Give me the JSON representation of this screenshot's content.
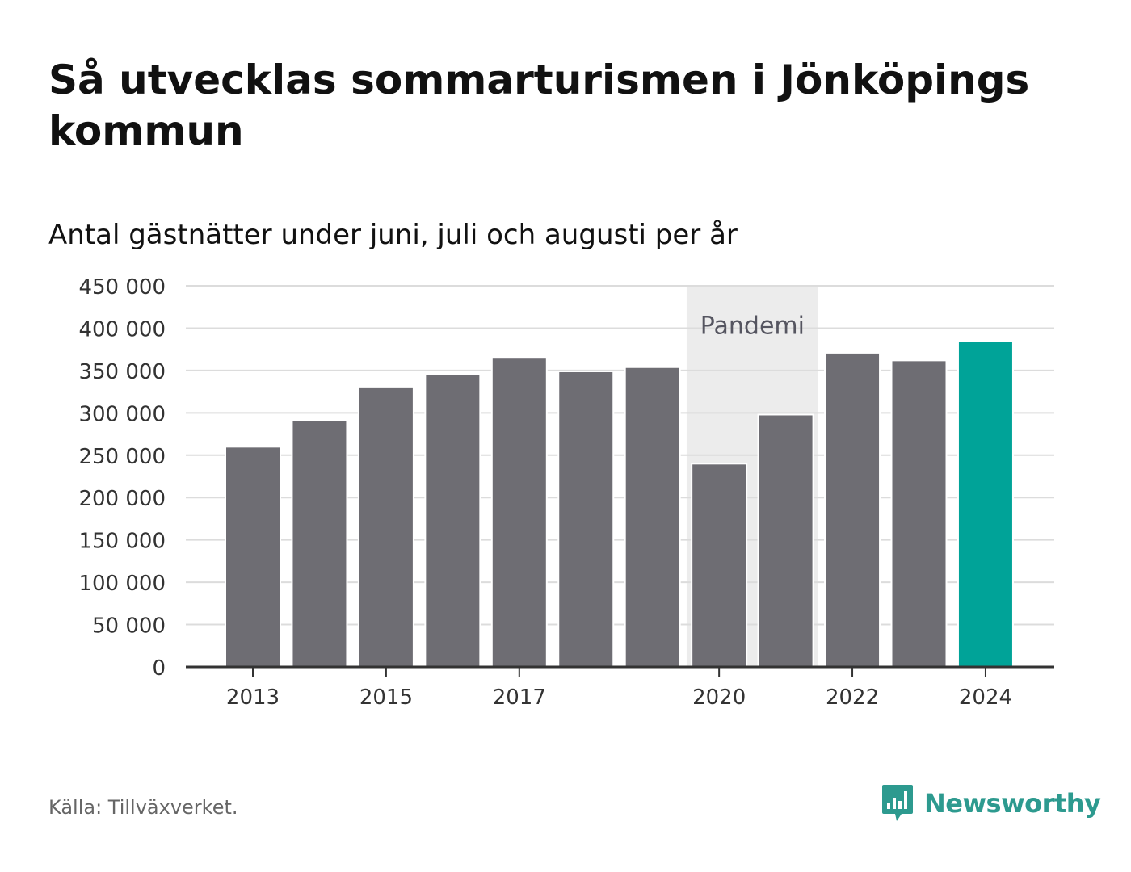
{
  "title": "Så utvecklas sommarturismen i Jönköpings kommun",
  "subtitle": "Antal gästnätter under juni, juli och augusti per år",
  "source": "Källa: Tillväxverket.",
  "brand": "Newsworthy",
  "colors": {
    "bar": "#6e6d73",
    "highlight": "#00a398",
    "band": "#ececec",
    "grid": "#dcdcdc",
    "brand": "#2d9a8f"
  },
  "chart_data": {
    "type": "bar",
    "categories": [
      "2013",
      "2014",
      "2015",
      "2016",
      "2017",
      "2018",
      "2019",
      "2020",
      "2021",
      "2022",
      "2023",
      "2024"
    ],
    "values": [
      259000,
      290000,
      330000,
      345000,
      364000,
      348000,
      353000,
      239000,
      297000,
      370000,
      361000,
      384000
    ],
    "highlight_index": 11,
    "ylim": [
      0,
      450000
    ],
    "yticks": [
      0,
      50000,
      100000,
      150000,
      200000,
      250000,
      300000,
      350000,
      400000,
      450000
    ],
    "ytick_labels": [
      "0",
      "50 000",
      "100 000",
      "150 000",
      "200 000",
      "250 000",
      "300 000",
      "350 000",
      "400 000",
      "450 000"
    ],
    "xtick_labels": [
      {
        "category": "2013",
        "label": "2013"
      },
      {
        "category": "2015",
        "label": "2015"
      },
      {
        "category": "2017",
        "label": "2017"
      },
      {
        "category": "2020",
        "label": "2020"
      },
      {
        "category": "2022",
        "label": "2022"
      },
      {
        "category": "2024",
        "label": "2024"
      }
    ],
    "annotation": {
      "label": "Pandemi",
      "from": "2020",
      "to": "2021"
    },
    "grid": true
  }
}
